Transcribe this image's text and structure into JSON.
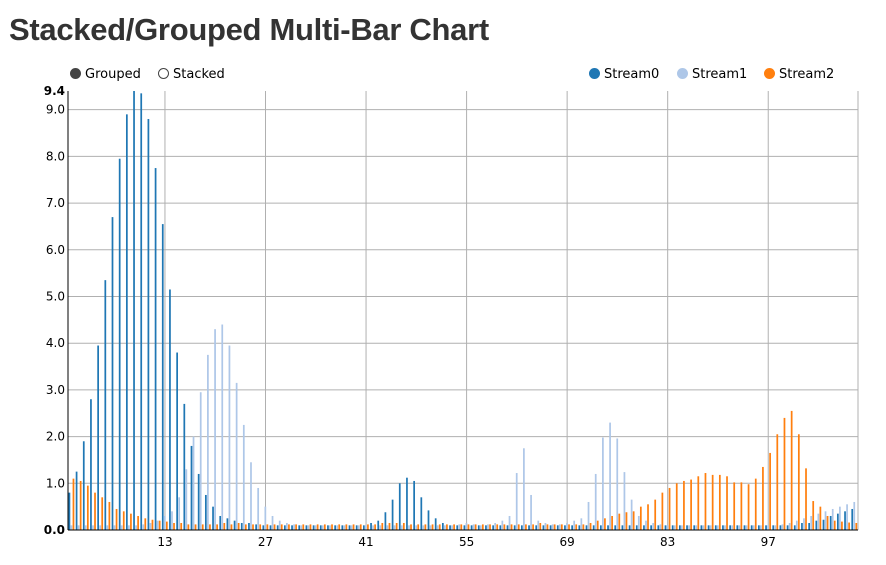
{
  "title": "Stacked/Grouped Multi-Bar Chart",
  "controls": [
    {
      "label": "Grouped",
      "selected": true
    },
    {
      "label": "Stacked",
      "selected": false
    }
  ],
  "chart_data": {
    "type": "bar",
    "mode": "grouped",
    "legend_placement": "top-right",
    "grid": true,
    "ylim": [
      0,
      9.4
    ],
    "y_ticks": [
      "0.0",
      "1.0",
      "2.0",
      "3.0",
      "4.0",
      "5.0",
      "6.0",
      "7.0",
      "8.0",
      "9.0",
      "9.4"
    ],
    "x_ticks": [
      "13",
      "27",
      "41",
      "55",
      "69",
      "83",
      "97"
    ],
    "x": [
      0,
      1,
      2,
      3,
      4,
      5,
      6,
      7,
      8,
      9,
      10,
      11,
      12,
      13,
      14,
      15,
      16,
      17,
      18,
      19,
      20,
      21,
      22,
      23,
      24,
      25,
      26,
      27,
      28,
      29,
      30,
      31,
      32,
      33,
      34,
      35,
      36,
      37,
      38,
      39,
      40,
      41,
      42,
      43,
      44,
      45,
      46,
      47,
      48,
      49,
      50,
      51,
      52,
      53,
      54,
      55,
      56,
      57,
      58,
      59,
      60,
      61,
      62,
      63,
      64,
      65,
      66,
      67,
      68,
      69,
      70,
      71,
      72,
      73,
      74,
      75,
      76,
      77,
      78,
      79,
      80,
      81,
      82,
      83,
      84,
      85,
      86,
      87,
      88,
      89,
      90,
      91,
      92,
      93,
      94,
      95,
      96,
      97,
      98,
      99,
      100,
      101,
      102,
      103,
      104,
      105,
      106,
      107,
      108,
      109
    ],
    "series": [
      {
        "name": "Stream0",
        "color": "#1f77b4",
        "values": [
          0.8,
          1.25,
          1.9,
          2.8,
          3.95,
          5.35,
          6.7,
          7.95,
          8.9,
          9.4,
          9.35,
          8.8,
          7.75,
          6.55,
          5.15,
          3.8,
          2.7,
          1.8,
          1.2,
          0.75,
          0.5,
          0.3,
          0.25,
          0.2,
          0.15,
          0.15,
          0.12,
          0.1,
          0.1,
          0.1,
          0.1,
          0.1,
          0.1,
          0.1,
          0.1,
          0.1,
          0.1,
          0.1,
          0.1,
          0.1,
          0.1,
          0.1,
          0.15,
          0.2,
          0.38,
          0.65,
          1.0,
          1.12,
          1.05,
          0.7,
          0.42,
          0.25,
          0.15,
          0.1,
          0.1,
          0.1,
          0.1,
          0.1,
          0.1,
          0.1,
          0.1,
          0.1,
          0.1,
          0.1,
          0.1,
          0.1,
          0.1,
          0.1,
          0.1,
          0.1,
          0.1,
          0.1,
          0.1,
          0.1,
          0.1,
          0.1,
          0.1,
          0.1,
          0.1,
          0.1,
          0.1,
          0.1,
          0.1,
          0.1,
          0.1,
          0.1,
          0.1,
          0.1,
          0.1,
          0.1,
          0.1,
          0.1,
          0.1,
          0.1,
          0.1,
          0.1,
          0.1,
          0.1,
          0.1,
          0.1,
          0.1,
          0.1,
          0.15,
          0.15,
          0.2,
          0.22,
          0.3,
          0.35,
          0.4,
          0.45
        ]
      },
      {
        "name": "Stream1",
        "color": "#aec7e8",
        "values": [
          0.1,
          0.1,
          0.1,
          0.1,
          0.1,
          0.1,
          0.1,
          0.1,
          0.1,
          0.1,
          0.12,
          0.15,
          0.2,
          0.3,
          0.4,
          0.7,
          1.3,
          2.0,
          2.95,
          3.75,
          4.3,
          4.4,
          3.95,
          3.15,
          2.25,
          1.45,
          0.9,
          0.5,
          0.3,
          0.2,
          0.15,
          0.12,
          0.1,
          0.1,
          0.1,
          0.1,
          0.1,
          0.1,
          0.1,
          0.1,
          0.1,
          0.1,
          0.1,
          0.1,
          0.1,
          0.1,
          0.1,
          0.1,
          0.1,
          0.1,
          0.1,
          0.1,
          0.1,
          0.1,
          0.12,
          0.15,
          0.12,
          0.1,
          0.12,
          0.15,
          0.2,
          0.3,
          1.22,
          1.75,
          0.75,
          0.2,
          0.15,
          0.12,
          0.12,
          0.15,
          0.2,
          0.25,
          0.6,
          1.2,
          1.98,
          2.3,
          1.96,
          1.24,
          0.65,
          0.3,
          0.2,
          0.15,
          0.12,
          0.1,
          0.1,
          0.1,
          0.1,
          0.1,
          0.1,
          0.1,
          0.1,
          0.1,
          0.1,
          0.1,
          0.1,
          0.1,
          0.1,
          0.1,
          0.1,
          0.12,
          0.15,
          0.2,
          0.25,
          0.3,
          0.35,
          0.4,
          0.45,
          0.5,
          0.55,
          0.6
        ]
      },
      {
        "name": "Stream2",
        "color": "#ff7f0e",
        "values": [
          1.1,
          1.05,
          0.95,
          0.8,
          0.7,
          0.6,
          0.45,
          0.4,
          0.35,
          0.3,
          0.25,
          0.22,
          0.2,
          0.18,
          0.15,
          0.15,
          0.12,
          0.12,
          0.12,
          0.12,
          0.12,
          0.15,
          0.12,
          0.15,
          0.12,
          0.12,
          0.12,
          0.12,
          0.12,
          0.12,
          0.12,
          0.12,
          0.12,
          0.12,
          0.12,
          0.12,
          0.12,
          0.12,
          0.12,
          0.12,
          0.12,
          0.12,
          0.12,
          0.15,
          0.15,
          0.15,
          0.15,
          0.12,
          0.12,
          0.12,
          0.12,
          0.12,
          0.12,
          0.12,
          0.12,
          0.12,
          0.12,
          0.12,
          0.12,
          0.12,
          0.12,
          0.12,
          0.12,
          0.12,
          0.12,
          0.15,
          0.12,
          0.12,
          0.12,
          0.12,
          0.12,
          0.12,
          0.15,
          0.2,
          0.25,
          0.3,
          0.35,
          0.38,
          0.4,
          0.5,
          0.55,
          0.65,
          0.8,
          0.9,
          1.0,
          1.05,
          1.08,
          1.15,
          1.22,
          1.18,
          1.18,
          1.15,
          1.02,
          1.02,
          0.98,
          1.1,
          1.35,
          1.65,
          2.05,
          2.4,
          2.55,
          2.05,
          1.32,
          0.62,
          0.5,
          0.3,
          0.2,
          0.18,
          0.16,
          0.15
        ]
      }
    ]
  }
}
